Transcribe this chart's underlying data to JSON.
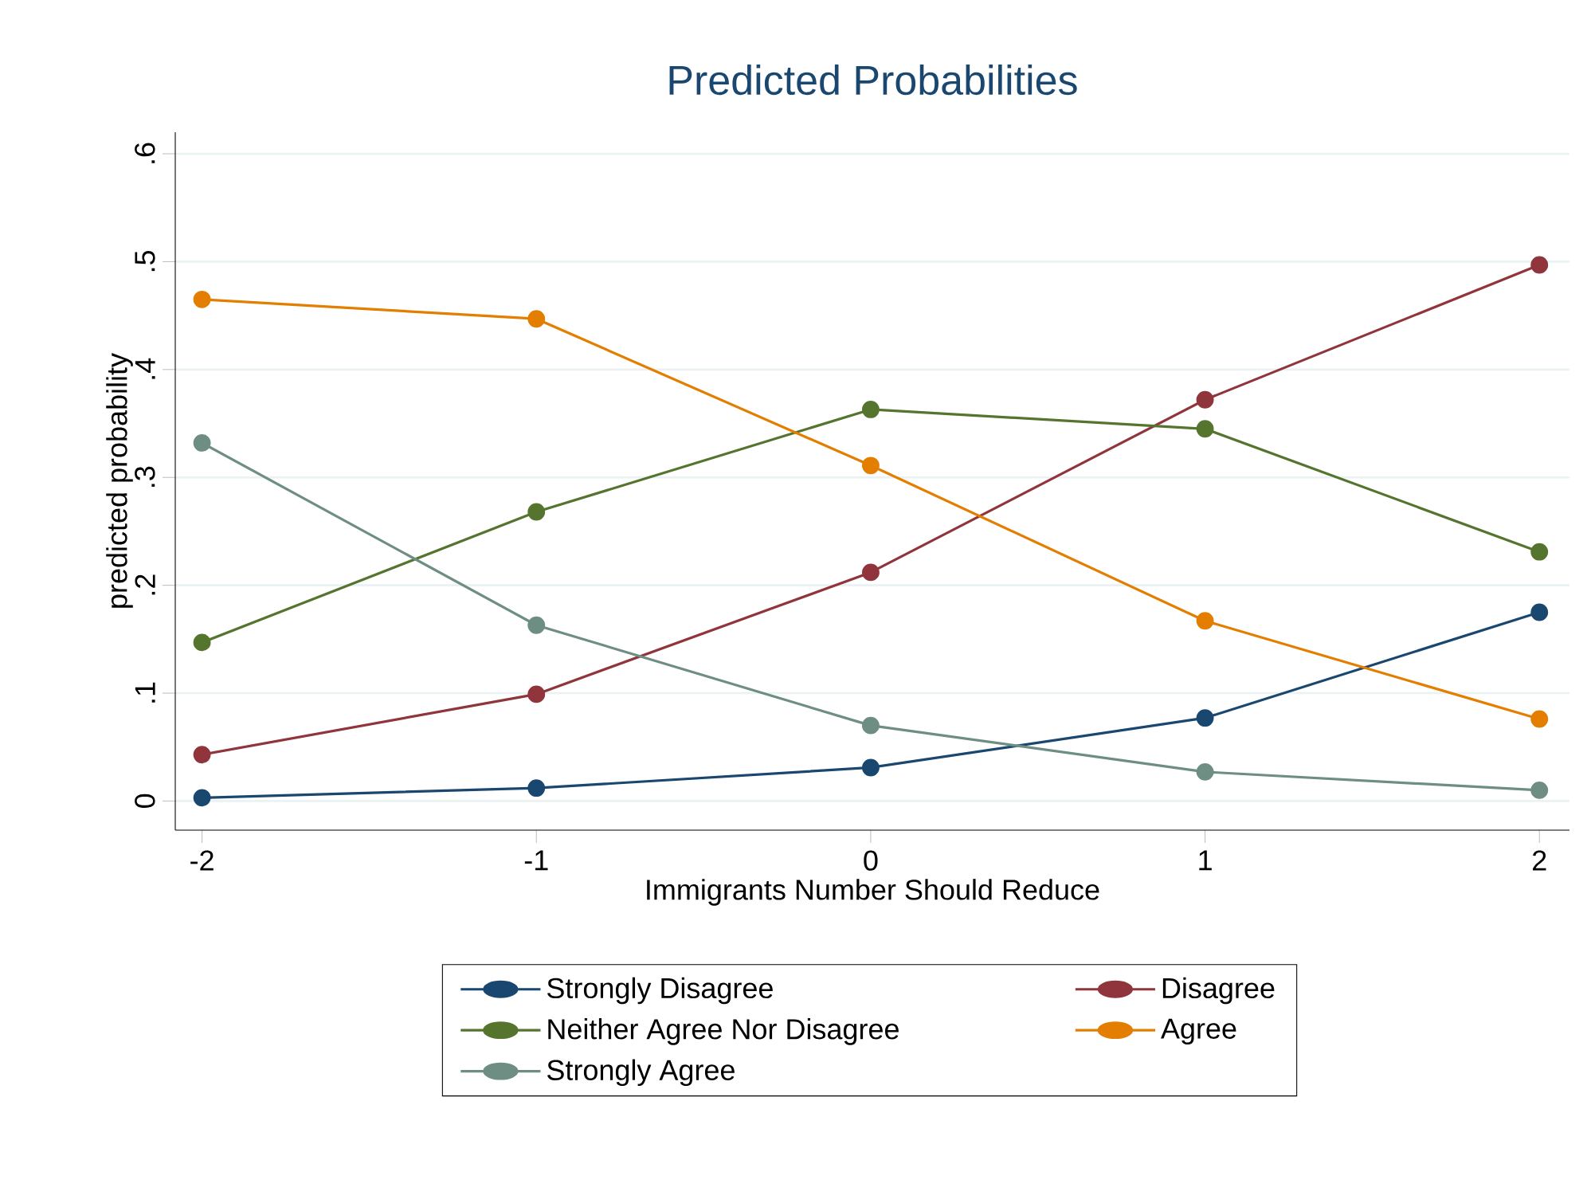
{
  "chart_data": {
    "type": "line",
    "title": "Predicted Probabilities",
    "xlabel": "Immigrants Number Should Reduce",
    "ylabel": "predicted probability",
    "x": [
      -2,
      -1,
      0,
      1,
      2
    ],
    "series": [
      {
        "name": "Strongly Disagree",
        "color": "#1a476f",
        "values": [
          0.003,
          0.012,
          0.031,
          0.077,
          0.175
        ]
      },
      {
        "name": "Disagree",
        "color": "#90353b",
        "values": [
          0.043,
          0.099,
          0.212,
          0.372,
          0.497
        ]
      },
      {
        "name": "Neither Agree Nor Disagree",
        "color": "#55752f",
        "values": [
          0.147,
          0.268,
          0.363,
          0.345,
          0.231
        ]
      },
      {
        "name": "Agree",
        "color": "#e37e00",
        "values": [
          0.465,
          0.447,
          0.311,
          0.167,
          0.076
        ]
      },
      {
        "name": "Strongly Agree",
        "color": "#6e8e84",
        "values": [
          0.332,
          0.163,
          0.07,
          0.027,
          0.01
        ]
      }
    ],
    "xlim": [
      -2.08,
      2.09
    ],
    "ylim": [
      -0.027,
      0.62
    ],
    "xticks": [
      -2,
      -1,
      0,
      1,
      2
    ],
    "yticks": [
      0,
      {
        "value": 0.1,
        "label": ".1"
      },
      {
        "value": 0.2,
        "label": ".2"
      },
      {
        "value": 0.3,
        "label": ".3"
      },
      {
        "value": 0.4,
        "label": ".4"
      },
      {
        "value": 0.5,
        "label": ".5"
      },
      {
        "value": 0.6,
        "label": ".6"
      }
    ],
    "grid": "y",
    "legend": "bottom",
    "marker": "circle",
    "line_style": "solid"
  }
}
